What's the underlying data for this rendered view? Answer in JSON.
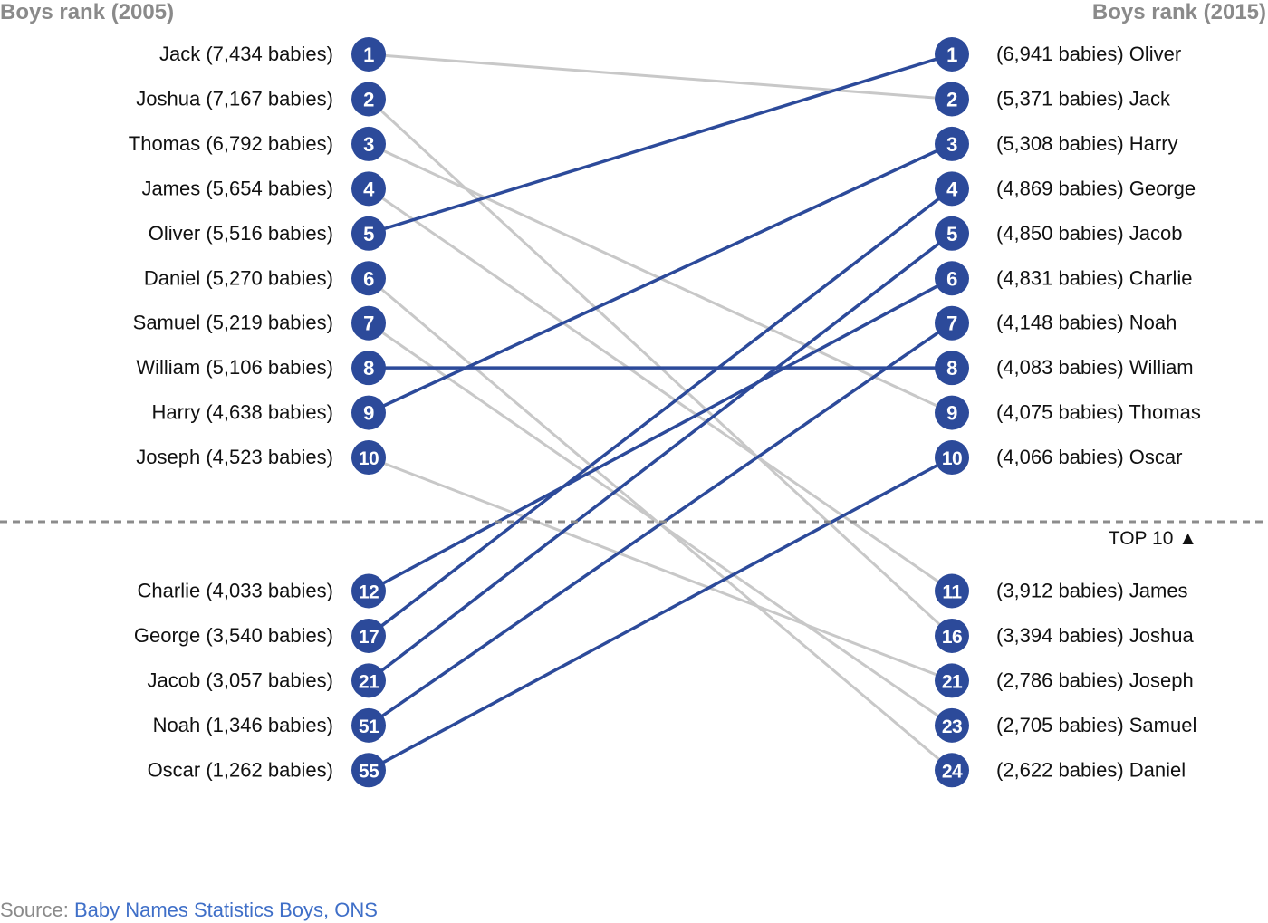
{
  "colors": {
    "up": "#2c4a9a",
    "down": "#c8c8c8",
    "dot": "#2c4a9a",
    "divider": "#8c8c8c"
  },
  "chart_data": {
    "type": "slope",
    "left_header": "Boys rank (2005)",
    "right_header": "Boys rank (2015)",
    "cutoff_label": "TOP 10 ▲",
    "left": [
      {
        "name": "Jack",
        "rank": 1,
        "label": "Jack (7,434 babies)",
        "rank_label": "1"
      },
      {
        "name": "Joshua",
        "rank": 2,
        "label": "Joshua (7,167 babies)",
        "rank_label": "2"
      },
      {
        "name": "Thomas",
        "rank": 3,
        "label": "Thomas (6,792 babies)",
        "rank_label": "3"
      },
      {
        "name": "James",
        "rank": 4,
        "label": "James (5,654 babies)",
        "rank_label": "4"
      },
      {
        "name": "Oliver",
        "rank": 5,
        "label": "Oliver (5,516 babies)",
        "rank_label": "5"
      },
      {
        "name": "Daniel",
        "rank": 6,
        "label": "Daniel (5,270 babies)",
        "rank_label": "6"
      },
      {
        "name": "Samuel",
        "rank": 7,
        "label": "Samuel (5,219 babies)",
        "rank_label": "7"
      },
      {
        "name": "William",
        "rank": 8,
        "label": "William (5,106 babies)",
        "rank_label": "8"
      },
      {
        "name": "Harry",
        "rank": 9,
        "label": "Harry (4,638 babies)",
        "rank_label": "9"
      },
      {
        "name": "Joseph",
        "rank": 10,
        "label": "Joseph (4,523 babies)",
        "rank_label": "10"
      },
      {
        "name": "Charlie",
        "rank": 12,
        "label": "Charlie (4,033 babies)",
        "rank_label": "12"
      },
      {
        "name": "George",
        "rank": 17,
        "label": "George (3,540 babies)",
        "rank_label": "17"
      },
      {
        "name": "Jacob",
        "rank": 21,
        "label": "Jacob (3,057 babies)",
        "rank_label": "21"
      },
      {
        "name": "Noah",
        "rank": 51,
        "label": "Noah (1,346 babies)",
        "rank_label": "51"
      },
      {
        "name": "Oscar",
        "rank": 55,
        "label": "Oscar (1,262 babies)",
        "rank_label": "55"
      }
    ],
    "right": [
      {
        "name": "Oliver",
        "rank": 1,
        "label": "(6,941 babies) Oliver",
        "rank_label": "1"
      },
      {
        "name": "Jack",
        "rank": 2,
        "label": "(5,371 babies) Jack",
        "rank_label": "2"
      },
      {
        "name": "Harry",
        "rank": 3,
        "label": "(5,308 babies) Harry",
        "rank_label": "3"
      },
      {
        "name": "George",
        "rank": 4,
        "label": "(4,869 babies) George",
        "rank_label": "4"
      },
      {
        "name": "Jacob",
        "rank": 5,
        "label": "(4,850 babies) Jacob",
        "rank_label": "5"
      },
      {
        "name": "Charlie",
        "rank": 6,
        "label": "(4,831 babies) Charlie",
        "rank_label": "6"
      },
      {
        "name": "Noah",
        "rank": 7,
        "label": "(4,148 babies) Noah",
        "rank_label": "7"
      },
      {
        "name": "William",
        "rank": 8,
        "label": "(4,083 babies) William",
        "rank_label": "8"
      },
      {
        "name": "Thomas",
        "rank": 9,
        "label": "(4,075 babies) Thomas",
        "rank_label": "9"
      },
      {
        "name": "Oscar",
        "rank": 10,
        "label": "(4,066 babies) Oscar",
        "rank_label": "10"
      },
      {
        "name": "James",
        "rank": 11,
        "label": "(3,912 babies) James",
        "rank_label": "11"
      },
      {
        "name": "Joshua",
        "rank": 16,
        "label": "(3,394 babies) Joshua",
        "rank_label": "16"
      },
      {
        "name": "Joseph",
        "rank": 21,
        "label": "(2,786 babies) Joseph",
        "rank_label": "21"
      },
      {
        "name": "Samuel",
        "rank": 23,
        "label": "(2,705 babies) Samuel",
        "rank_label": "23"
      },
      {
        "name": "Daniel",
        "rank": 24,
        "label": "(2,622 babies) Daniel",
        "rank_label": "24"
      }
    ]
  },
  "source": {
    "prefix": "Source: ",
    "link_text": "Baby Names Statistics Boys, ONS"
  }
}
